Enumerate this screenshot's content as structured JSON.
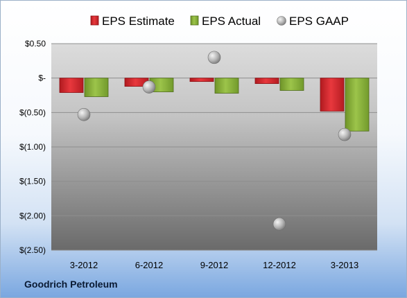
{
  "company": "Goodrich Petroleum",
  "colors": {
    "estimate": "#d9262c",
    "actual": "#8cb338",
    "gaap": "#b8b8b8"
  },
  "chart_data": {
    "type": "bar",
    "categories": [
      "3-2012",
      "6-2012",
      "9-2012",
      "12-2012",
      "3-2013"
    ],
    "series": [
      {
        "name": "EPS Estimate",
        "type": "bar",
        "values": [
          -0.21,
          -0.12,
          -0.05,
          -0.08,
          -0.48
        ]
      },
      {
        "name": "EPS Actual",
        "type": "bar",
        "values": [
          -0.27,
          -0.2,
          -0.22,
          -0.18,
          -0.77
        ]
      },
      {
        "name": "EPS GAAP",
        "type": "scatter",
        "values": [
          -0.53,
          -0.13,
          0.3,
          -2.12,
          -0.82
        ]
      }
    ],
    "ylim": [
      -2.5,
      0.5
    ],
    "yticks": [
      0.5,
      0,
      -0.5,
      -1.0,
      -1.5,
      -2.0,
      -2.5
    ],
    "ytick_labels": [
      "$0.50",
      "$-",
      "$(0.50)",
      "$(1.00)",
      "$(1.50)",
      "$(2.00)",
      "$(2.50)"
    ],
    "legend_position": "top",
    "grid": true,
    "xlabel": "",
    "ylabel": ""
  }
}
